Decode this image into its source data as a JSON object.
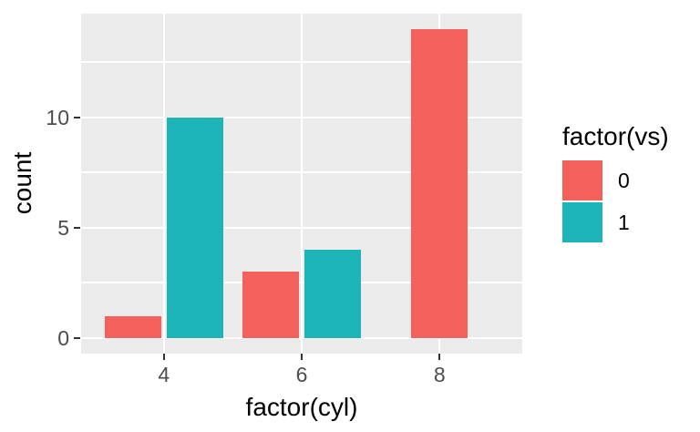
{
  "chart_data": {
    "type": "bar",
    "subtype": "dodged",
    "title": "",
    "xlabel": "factor(cyl)",
    "ylabel": "count",
    "legend_title": "factor(vs)",
    "legend_position": "right",
    "categories": [
      "4",
      "6",
      "8"
    ],
    "series": [
      {
        "name": "0",
        "color": "#F4605C",
        "values": [
          1,
          3,
          14
        ]
      },
      {
        "name": "1",
        "color": "#1DB4B8",
        "values": [
          10,
          4,
          0
        ]
      }
    ],
    "ylim": [
      -0.7,
      14.7
    ],
    "yticks": [
      0,
      5,
      10
    ],
    "y_minor_ticks": [
      2.5,
      7.5,
      12.5
    ],
    "grid": true,
    "panel_bg": "#EBEBEB",
    "grid_color": "#FFFFFF",
    "tick_mark_color": "#333333",
    "tick_label_color": "#4D4D4D"
  }
}
